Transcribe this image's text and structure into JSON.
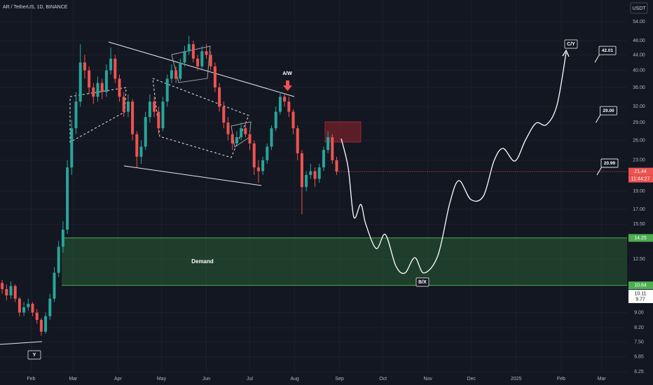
{
  "chart_data": {
    "type": "candlestick",
    "title": "AR / TetherUS, 1D, BINANCE",
    "currency": "USDT",
    "log_scale": true,
    "grid": true,
    "up_color": "#26a69a",
    "down_color": "#ef5350",
    "ohlc": [
      [
        10.8,
        11.0,
        10.1,
        10.4
      ],
      [
        10.4,
        10.7,
        9.7,
        10.0
      ],
      [
        10.0,
        10.9,
        9.8,
        10.6
      ],
      [
        10.6,
        10.7,
        9.6,
        9.8
      ],
      [
        9.8,
        9.9,
        8.8,
        9.0
      ],
      [
        9.0,
        9.6,
        8.8,
        9.3
      ],
      [
        9.3,
        9.8,
        9.1,
        9.5
      ],
      [
        9.5,
        9.6,
        8.8,
        9.0
      ],
      [
        9.0,
        9.2,
        8.4,
        8.6
      ],
      [
        8.6,
        8.7,
        7.8,
        8.0
      ],
      [
        8.0,
        9.0,
        7.9,
        8.8
      ],
      [
        8.8,
        10.1,
        8.6,
        9.8
      ],
      [
        9.8,
        11.9,
        9.6,
        11.5
      ],
      [
        11.5,
        14.0,
        11.2,
        13.5
      ],
      [
        13.5,
        15.8,
        13.0,
        15.0
      ],
      [
        15.0,
        23.0,
        14.6,
        22.0
      ],
      [
        22.0,
        29.5,
        21.0,
        28.0
      ],
      [
        28.0,
        35.0,
        27.0,
        33.0
      ],
      [
        33.0,
        47.0,
        32.0,
        42.0
      ],
      [
        42.0,
        44.0,
        38.0,
        40.0
      ],
      [
        40.0,
        41.0,
        34.5,
        36.0
      ],
      [
        36.0,
        37.0,
        32.5,
        34.0
      ],
      [
        34.0,
        38.5,
        33.0,
        37.0
      ],
      [
        37.0,
        38.0,
        33.5,
        35.0
      ],
      [
        35.0,
        41.5,
        34.0,
        40.0
      ],
      [
        40.0,
        46.0,
        39.0,
        43.0
      ],
      [
        43.0,
        44.0,
        37.0,
        38.0
      ],
      [
        38.0,
        39.0,
        33.0,
        34.0
      ],
      [
        34.0,
        35.0,
        30.0,
        31.0
      ],
      [
        31.0,
        34.5,
        30.0,
        33.0
      ],
      [
        33.0,
        33.5,
        26.0,
        27.0
      ],
      [
        27.0,
        27.5,
        22.0,
        23.5
      ],
      [
        23.5,
        26.0,
        22.5,
        25.0
      ],
      [
        25.0,
        31.0,
        24.5,
        30.0
      ],
      [
        30.0,
        34.5,
        29.0,
        33.0
      ],
      [
        33.0,
        34.0,
        30.0,
        31.0
      ],
      [
        31.0,
        32.0,
        27.0,
        28.0
      ],
      [
        28.0,
        34.0,
        27.5,
        33.0
      ],
      [
        33.0,
        39.0,
        32.0,
        38.0
      ],
      [
        38.0,
        41.5,
        37.0,
        40.0
      ],
      [
        40.0,
        41.0,
        37.0,
        38.0
      ],
      [
        38.0,
        43.0,
        37.5,
        42.0
      ],
      [
        42.0,
        46.5,
        41.0,
        45.0
      ],
      [
        45.0,
        49.5,
        44.0,
        47.0
      ],
      [
        47.0,
        48.0,
        42.0,
        43.0
      ],
      [
        43.0,
        44.0,
        40.0,
        41.0
      ],
      [
        41.0,
        46.5,
        40.5,
        45.0
      ],
      [
        45.0,
        47.0,
        43.0,
        44.0
      ],
      [
        44.0,
        45.0,
        40.0,
        41.0
      ],
      [
        41.0,
        42.0,
        35.0,
        36.0
      ],
      [
        36.0,
        37.0,
        31.0,
        32.0
      ],
      [
        32.0,
        33.0,
        28.0,
        29.0
      ],
      [
        29.0,
        30.0,
        26.0,
        27.0
      ],
      [
        27.0,
        27.5,
        24.5,
        25.5
      ],
      [
        25.5,
        27.5,
        25.0,
        26.5
      ],
      [
        26.5,
        29.0,
        26.0,
        28.0
      ],
      [
        28.0,
        29.0,
        26.5,
        27.0
      ],
      [
        27.0,
        27.5,
        24.5,
        25.5
      ],
      [
        25.5,
        26.0,
        21.0,
        22.0
      ],
      [
        22.0,
        23.0,
        20.0,
        21.5
      ],
      [
        21.5,
        23.5,
        21.0,
        23.0
      ],
      [
        23.0,
        25.5,
        22.5,
        25.0
      ],
      [
        25.0,
        28.5,
        24.5,
        28.0
      ],
      [
        28.0,
        32.0,
        27.5,
        31.0
      ],
      [
        31.0,
        35.0,
        30.5,
        34.0
      ],
      [
        34.0,
        34.5,
        32.0,
        33.0
      ],
      [
        33.0,
        34.0,
        30.0,
        31.0
      ],
      [
        31.0,
        31.5,
        27.0,
        28.0
      ],
      [
        28.0,
        28.5,
        23.0,
        24.0
      ],
      [
        24.0,
        24.5,
        16.5,
        19.5
      ],
      [
        19.5,
        21.5,
        19.0,
        21.0
      ],
      [
        21.0,
        22.5,
        20.5,
        21.5
      ],
      [
        21.5,
        22.0,
        19.5,
        20.5
      ],
      [
        20.5,
        22.5,
        20.0,
        22.0
      ],
      [
        22.0,
        25.0,
        21.5,
        24.5
      ],
      [
        24.5,
        27.5,
        24.0,
        26.5
      ],
      [
        26.5,
        27.0,
        22.5,
        23.0
      ],
      [
        23.0,
        23.5,
        21.0,
        21.44
      ]
    ],
    "countdown": "11:44:27",
    "xlim": [
      -0.5,
      143.85
    ],
    "xticks": [
      {
        "value": 6.67,
        "label": "Feb"
      },
      {
        "value": 16.33,
        "label": "Mar"
      },
      {
        "value": 26.67,
        "label": "Apr"
      },
      {
        "value": 36.67,
        "label": "May"
      },
      {
        "value": 47,
        "label": "Jun"
      },
      {
        "value": 57,
        "label": "Jul"
      },
      {
        "value": 67.33,
        "label": "Aug"
      },
      {
        "value": 77.67,
        "label": "Sep"
      },
      {
        "value": 87.67,
        "label": "Oct"
      },
      {
        "value": 98,
        "label": "Nov"
      },
      {
        "value": 108,
        "label": "Dec"
      },
      {
        "value": 118.33,
        "label": "2025"
      },
      {
        "value": 128.67,
        "label": "Feb"
      },
      {
        "value": 138,
        "label": "Mar"
      }
    ],
    "ylim": [
      5.76,
      61.7
    ],
    "yticks": [
      {
        "value": 54,
        "label": "54.00"
      },
      {
        "value": 48,
        "label": "48.00"
      },
      {
        "value": 44,
        "label": "44.00"
      },
      {
        "value": 40,
        "label": "40.00"
      },
      {
        "value": 36,
        "label": "36.00"
      },
      {
        "value": 32,
        "label": "32.00"
      },
      {
        "value": 29,
        "label": "29.00"
      },
      {
        "value": 26,
        "label": "26.00"
      },
      {
        "value": 23,
        "label": "23.00"
      },
      {
        "value": 19,
        "label": "19.00"
      },
      {
        "value": 17,
        "label": "17.00"
      },
      {
        "value": 15.5,
        "label": "15.50"
      },
      {
        "value": 12.5,
        "label": "12.50"
      },
      {
        "value": 9,
        "label": "9.00"
      },
      {
        "value": 8.2,
        "label": "8.20"
      },
      {
        "value": 7.5,
        "label": "7.50"
      },
      {
        "value": 6.85,
        "label": "6.85"
      },
      {
        "value": 6.25,
        "label": "6.25"
      }
    ],
    "zone": {
      "label": "Demand",
      "top": 14.25,
      "bottom": 10.64
    },
    "other_price_tags": [
      10.11,
      9.77
    ],
    "targets": {
      "values": [
        42.01,
        29,
        20.99
      ],
      "value_labels": [
        "42.01",
        "29.00",
        "20.99"
      ]
    },
    "wave_labels": [
      "A/W",
      "B/X",
      "C/Y",
      "Y"
    ]
  }
}
